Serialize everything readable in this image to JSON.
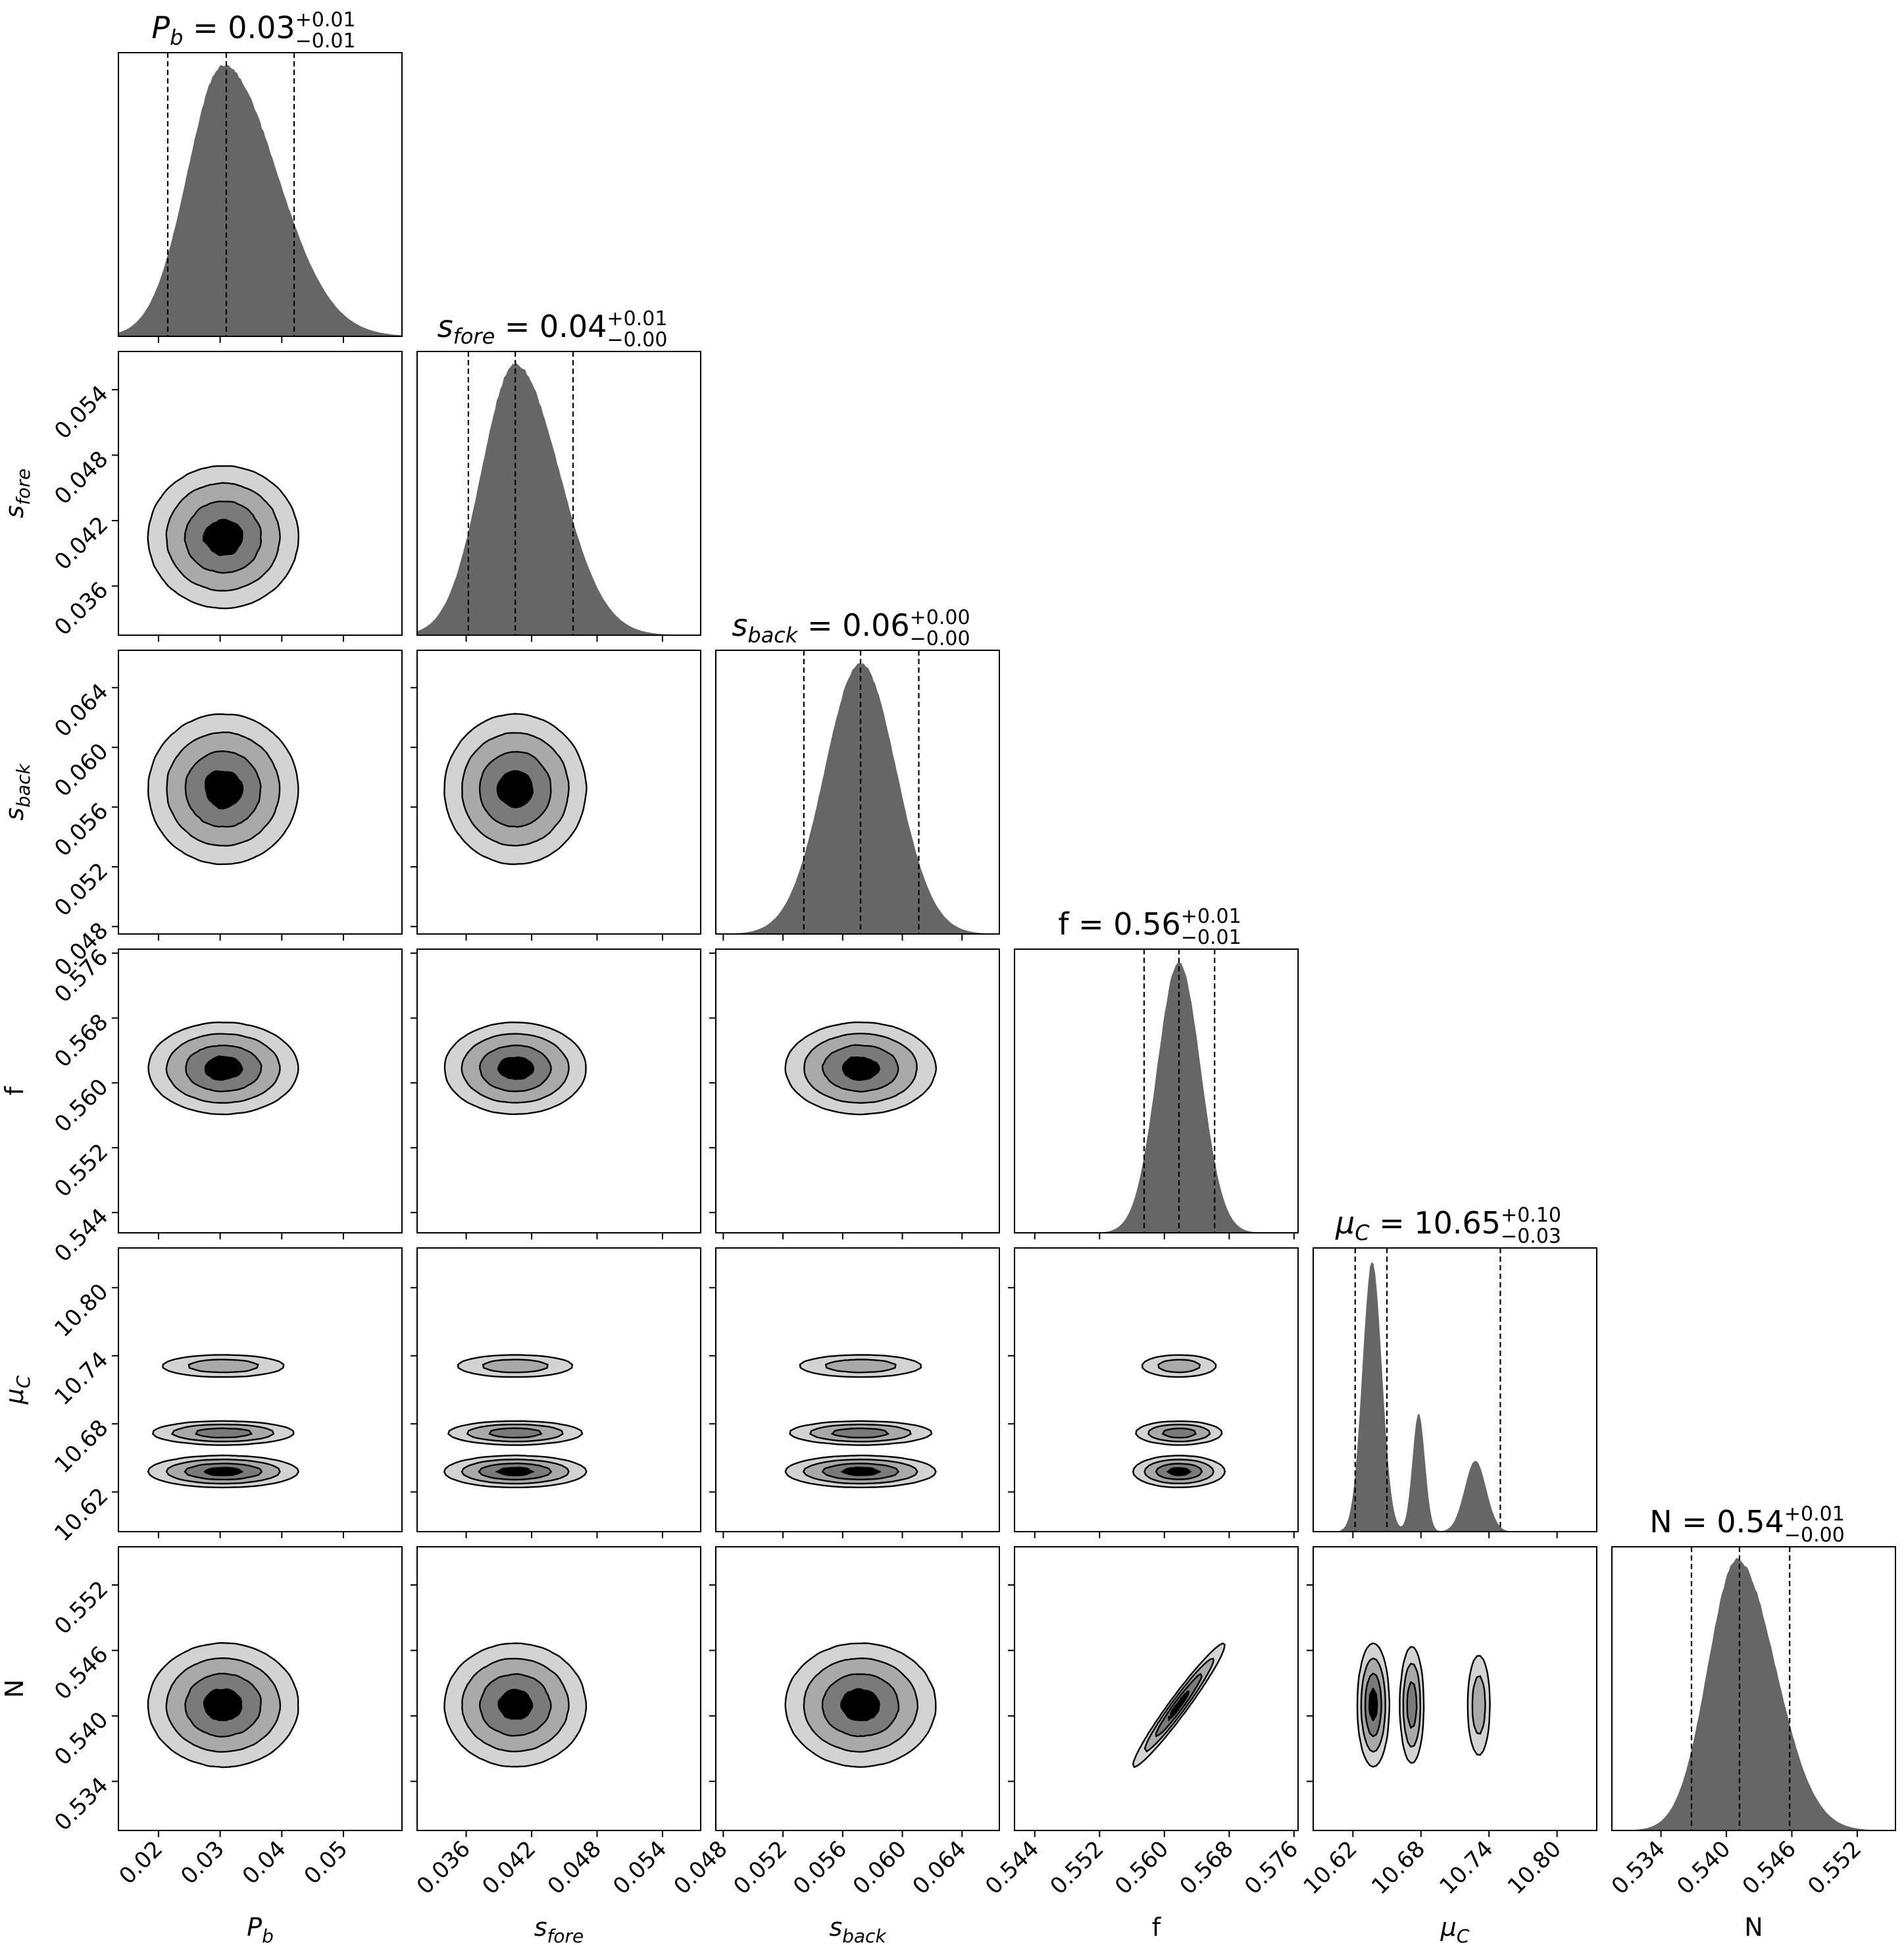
{
  "chart_data": {
    "type": "corner",
    "parameters": [
      {
        "key": "pb",
        "symbol": "P",
        "sub": "b",
        "italic": true,
        "median": "0.03",
        "plus": "+0.01",
        "minus": "−0.01",
        "q": [
          0.0215,
          0.031,
          0.042
        ],
        "range": [
          0.0135,
          0.0595
        ],
        "ticks": [
          0.02,
          0.03,
          0.04,
          0.05
        ],
        "tick_labels": [
          "0.02",
          "0.03",
          "0.04",
          "0.05"
        ],
        "dist": [
          {
            "mu": 0.0305,
            "sigma": 0.0058,
            "w": 1
          }
        ],
        "skew": 0.5
      },
      {
        "key": "sfore",
        "symbol": "s",
        "sub": "fore",
        "italic": true,
        "median": "0.04",
        "plus": "+0.01",
        "minus": "−0.00",
        "q": [
          0.0362,
          0.0405,
          0.0458
        ],
        "range": [
          0.0315,
          0.0575
        ],
        "ticks": [
          0.036,
          0.042,
          0.048,
          0.054
        ],
        "tick_labels": [
          "0.036",
          "0.042",
          "0.048",
          "0.054"
        ],
        "dist": [
          {
            "mu": 0.0405,
            "sigma": 0.0031,
            "w": 1
          }
        ],
        "skew": 0.3
      },
      {
        "key": "sback",
        "symbol": "s",
        "sub": "back",
        "italic": true,
        "median": "0.06",
        "plus": "+0.00",
        "minus": "−0.00",
        "q": [
          0.0534,
          0.0572,
          0.0611
        ],
        "range": [
          0.0475,
          0.0665
        ],
        "ticks": [
          0.048,
          0.052,
          0.056,
          0.06,
          0.064
        ],
        "tick_labels": [
          "0.048",
          "0.052",
          "0.056",
          "0.060",
          "0.064"
        ],
        "dist": [
          {
            "mu": 0.0572,
            "sigma": 0.0024,
            "w": 1
          }
        ],
        "skew": 0
      },
      {
        "key": "f",
        "symbol": "f",
        "sub": "",
        "italic": false,
        "median": "0.56",
        "plus": "+0.01",
        "minus": "−0.01",
        "q": [
          0.5575,
          0.5618,
          0.5662
        ],
        "range": [
          0.5415,
          0.5765
        ],
        "ticks": [
          0.544,
          0.552,
          0.56,
          0.568,
          0.576
        ],
        "tick_labels": [
          "0.544",
          "0.552",
          "0.560",
          "0.568",
          "0.576"
        ],
        "dist": [
          {
            "mu": 0.5618,
            "sigma": 0.0027,
            "w": 1
          }
        ],
        "skew": 0
      },
      {
        "key": "muc",
        "symbol": "μ",
        "sub": "C",
        "italic": true,
        "median": "10.65",
        "plus": "+0.10",
        "minus": "−0.03",
        "q": [
          10.622,
          10.65,
          10.75
        ],
        "range": [
          10.585,
          10.835
        ],
        "ticks": [
          10.62,
          10.68,
          10.74,
          10.8
        ],
        "tick_labels": [
          "10.62",
          "10.68",
          "10.74",
          "10.80"
        ],
        "dist": [
          {
            "mu": 10.637,
            "sigma": 0.0085,
            "w": 0.92
          },
          {
            "mu": 10.678,
            "sigma": 0.0055,
            "w": 0.4
          },
          {
            "mu": 10.728,
            "sigma": 0.0095,
            "w": 0.24
          }
        ],
        "skew": 0
      },
      {
        "key": "n",
        "symbol": "N",
        "sub": "",
        "italic": false,
        "median": "0.54",
        "plus": "+0.01",
        "minus": "−0.00",
        "q": [
          0.5368,
          0.5412,
          0.5458
        ],
        "range": [
          0.5295,
          0.5555
        ],
        "ticks": [
          0.534,
          0.54,
          0.546,
          0.552
        ],
        "tick_labels": [
          "0.534",
          "0.540",
          "0.546",
          "0.552"
        ],
        "dist": [
          {
            "mu": 0.541,
            "sigma": 0.0027,
            "w": 1
          }
        ],
        "skew": 0.3
      }
    ],
    "contour_levels": 4,
    "contour_colors": [
      "#d3d3d3",
      "#a9a9a9",
      "#7a7a7a",
      "#000000"
    ],
    "histogram_color": "#666666",
    "correlations": [
      {
        "pair": [
          "f",
          "n"
        ],
        "rho": 0.97
      }
    ],
    "muc_modes": [
      {
        "mu": 10.638,
        "sigma": 0.007,
        "w": 1.0
      },
      {
        "mu": 10.672,
        "sigma": 0.0055,
        "w": 0.8
      },
      {
        "mu": 10.731,
        "sigma": 0.006,
        "w": 0.5
      }
    ]
  }
}
